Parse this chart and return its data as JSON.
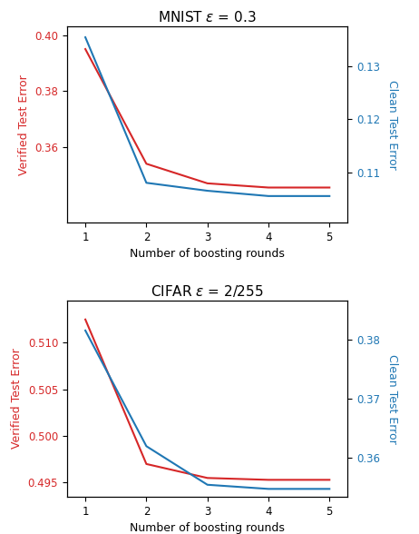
{
  "mnist": {
    "title": "MNIST $\\varepsilon$ = 0.3",
    "x": [
      1,
      2,
      3,
      4,
      5
    ],
    "verified": [
      0.395,
      0.354,
      0.347,
      0.3455,
      0.3455
    ],
    "clean": [
      0.1355,
      0.108,
      0.1065,
      0.1055,
      0.1055
    ],
    "left_ylim": [
      0.333,
      0.403
    ],
    "right_ylim": [
      0.1005,
      0.1375
    ],
    "left_yticks": [
      0.36,
      0.38,
      0.4
    ],
    "right_yticks": [
      0.11,
      0.12,
      0.13
    ],
    "left_ylabel": "Verified Test Error",
    "right_ylabel": "Clean Test Error",
    "xlabel": "Number of boosting rounds"
  },
  "cifar": {
    "title": "CIFAR $\\varepsilon$ = 2/255",
    "x": [
      1,
      2,
      3,
      4,
      5
    ],
    "verified": [
      0.5125,
      0.497,
      0.4955,
      0.4953,
      0.4953
    ],
    "clean": [
      0.3815,
      0.362,
      0.3555,
      0.3548,
      0.3548
    ],
    "left_ylim": [
      0.4935,
      0.5145
    ],
    "right_ylim": [
      0.3535,
      0.3865
    ],
    "left_yticks": [
      0.495,
      0.5,
      0.505,
      0.51
    ],
    "right_yticks": [
      0.36,
      0.37,
      0.38
    ],
    "left_ylabel": "Verified Test Error",
    "right_ylabel": "Clean Test Error",
    "xlabel": "Number of boosting rounds"
  },
  "red_color": "#d62728",
  "blue_color": "#1f77b4",
  "linewidth": 1.5
}
